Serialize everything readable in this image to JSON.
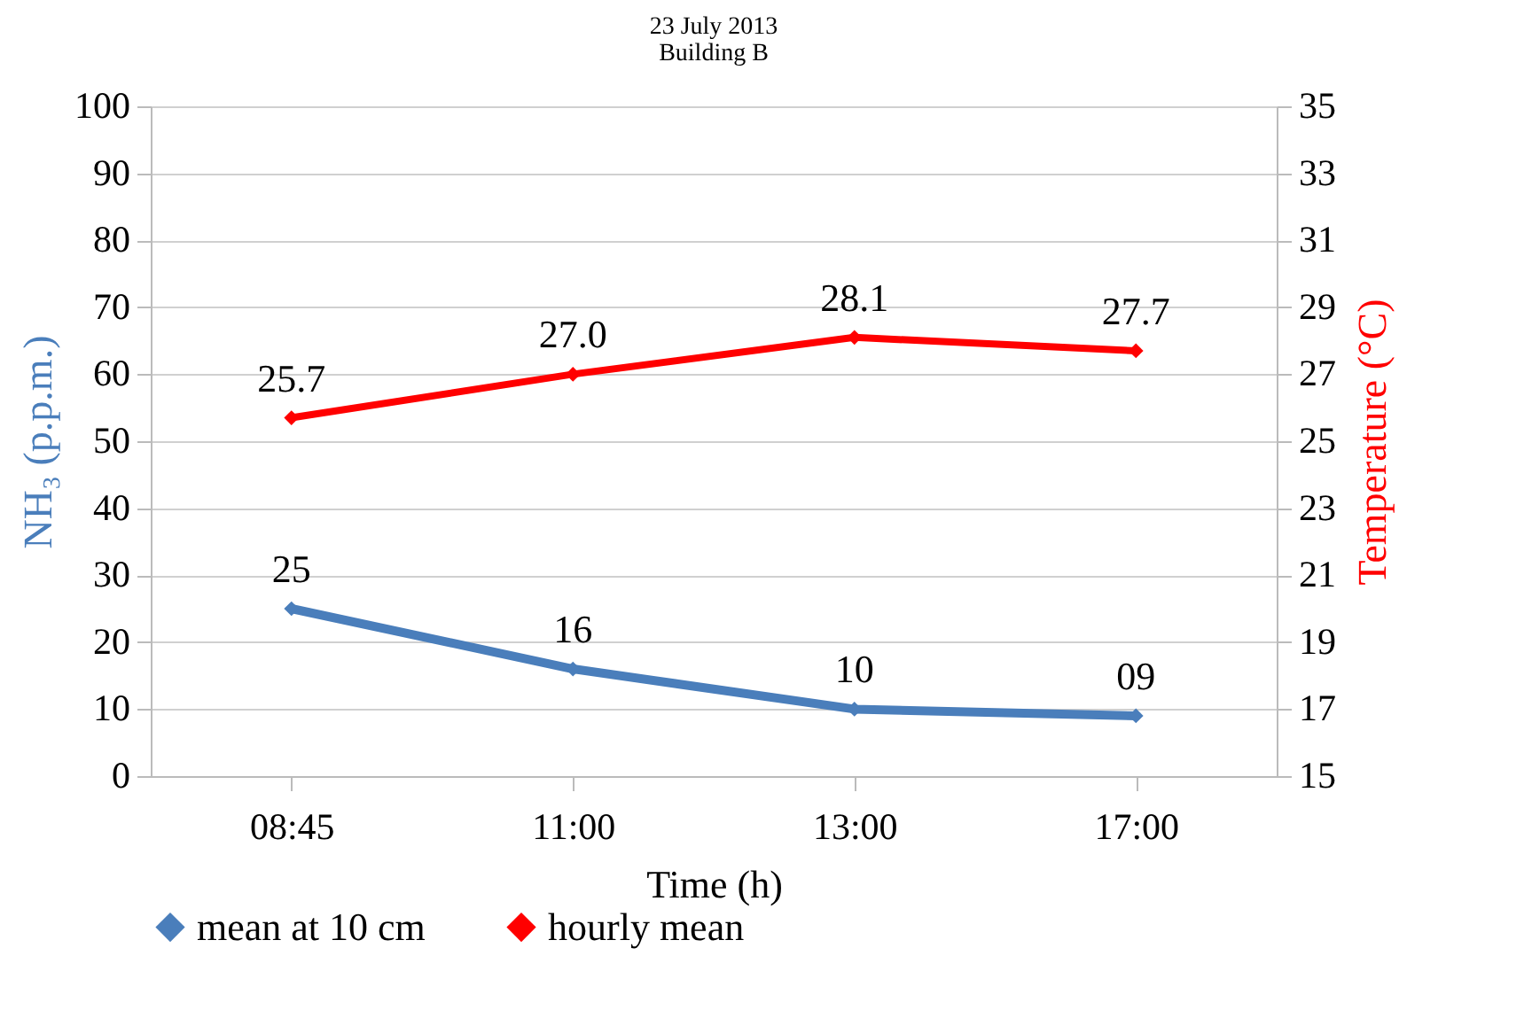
{
  "chart_data": {
    "type": "line",
    "title": "23 July 2013",
    "subtitle": "Building B",
    "xlabel": "Time (h)",
    "ylabel": "NH₃ (p.p.m.)",
    "y2label": "Temperature (°C)",
    "categories": [
      "08:45",
      "11:00",
      "13:00",
      "17:00"
    ],
    "series": [
      {
        "name": "mean at 10 cm",
        "color": "#4a7ebb",
        "values": [
          25,
          16,
          10,
          9
        ],
        "value_labels": [
          "25",
          "16",
          "10",
          "09"
        ]
      },
      {
        "name": "hourly mean",
        "color": "#ff0000",
        "axis": "y2",
        "values": [
          25.7,
          27.0,
          28.1,
          27.7
        ],
        "value_labels": [
          "25.7",
          "27.0",
          "28.1",
          "27.7"
        ]
      }
    ],
    "ylim": [
      0,
      100
    ],
    "yticks": [
      0,
      10,
      20,
      30,
      40,
      50,
      60,
      70,
      80,
      90,
      100
    ],
    "y2lim": [
      15,
      35
    ],
    "y2ticks": [
      15,
      17,
      19,
      21,
      23,
      25,
      27,
      29,
      31,
      33,
      35
    ],
    "grid": "y",
    "legend": "bottom",
    "marker": "diamond"
  }
}
